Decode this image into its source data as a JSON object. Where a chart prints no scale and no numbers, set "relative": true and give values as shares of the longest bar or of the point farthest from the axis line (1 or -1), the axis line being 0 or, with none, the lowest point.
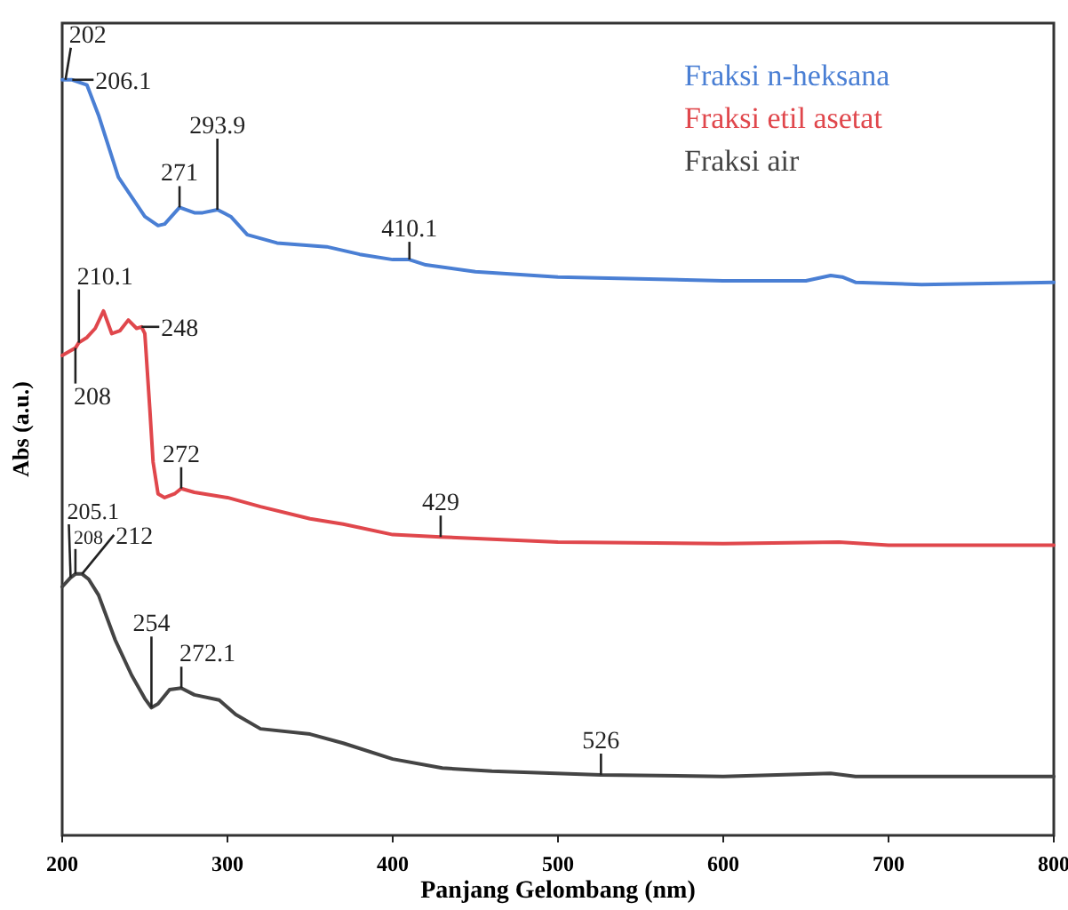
{
  "chart_data": {
    "type": "line",
    "relative": true,
    "xlabel": "Panjang Gelombang (nm)",
    "ylabel": "Abs (a.u.)",
    "xlim": [
      200,
      800
    ],
    "xticks": [
      200,
      300,
      400,
      500,
      600,
      700,
      800
    ],
    "legend": "top right",
    "grid": false,
    "line_style": "solid",
    "series": [
      {
        "name": "Fraksi n-heksana",
        "color": "#4a7fd4",
        "x": [
          200,
          206,
          215,
          222,
          234,
          250,
          258,
          262,
          271,
          280,
          285,
          294,
          302,
          312,
          330,
          360,
          380,
          400,
          410,
          420,
          450,
          500,
          600,
          650,
          665,
          672,
          680,
          720,
          800
        ],
        "values": [
          1.0,
          1.0,
          0.993,
          0.953,
          0.871,
          0.819,
          0.807,
          0.809,
          0.831,
          0.824,
          0.824,
          0.828,
          0.819,
          0.795,
          0.784,
          0.779,
          0.769,
          0.762,
          0.762,
          0.755,
          0.746,
          0.739,
          0.734,
          0.734,
          0.741,
          0.739,
          0.732,
          0.729,
          0.732
        ]
      },
      {
        "name": "Fraksi etil asetat",
        "color": "#e0474c",
        "x": [
          200,
          204,
          208,
          210,
          215,
          220,
          225,
          230,
          235,
          240,
          245,
          248,
          250,
          253,
          255,
          258,
          262,
          268,
          272,
          280,
          300,
          320,
          350,
          370,
          400,
          429,
          500,
          600,
          670,
          700,
          800
        ],
        "values": [
          0.635,
          0.64,
          0.645,
          0.652,
          0.659,
          0.671,
          0.694,
          0.664,
          0.668,
          0.682,
          0.671,
          0.673,
          0.664,
          0.565,
          0.494,
          0.452,
          0.447,
          0.452,
          0.459,
          0.454,
          0.447,
          0.435,
          0.419,
          0.412,
          0.398,
          0.395,
          0.388,
          0.386,
          0.388,
          0.384,
          0.384
        ]
      },
      {
        "name": "Fraksi air",
        "color": "#444444",
        "x": [
          200,
          205,
          208,
          212,
          216,
          222,
          232,
          242,
          250,
          254,
          258,
          265,
          272,
          280,
          295,
          305,
          320,
          350,
          370,
          400,
          430,
          460,
          526,
          600,
          665,
          680,
          800
        ],
        "values": [
          0.329,
          0.341,
          0.346,
          0.346,
          0.339,
          0.318,
          0.259,
          0.212,
          0.181,
          0.169,
          0.174,
          0.193,
          0.195,
          0.186,
          0.179,
          0.16,
          0.141,
          0.134,
          0.122,
          0.101,
          0.089,
          0.085,
          0.08,
          0.078,
          0.082,
          0.078,
          0.078
        ]
      }
    ],
    "annotations": [
      {
        "text": "202",
        "x": 202,
        "y": 1.0
      },
      {
        "text": "206.1",
        "x": 206.1,
        "y": 1.0
      },
      {
        "text": "271",
        "x": 271,
        "y": 0.831
      },
      {
        "text": "293.9",
        "x": 293.9,
        "y": 0.828
      },
      {
        "text": "410.1",
        "x": 410.1,
        "y": 0.762
      },
      {
        "text": "210.1",
        "x": 210.1,
        "y": 0.652
      },
      {
        "text": "208",
        "x": 208,
        "y": 0.645
      },
      {
        "text": "248",
        "x": 248,
        "y": 0.673
      },
      {
        "text": "272",
        "x": 272,
        "y": 0.459
      },
      {
        "text": "429",
        "x": 429,
        "y": 0.395
      },
      {
        "text": "205.1",
        "x": 205.1,
        "y": 0.341
      },
      {
        "text": "208",
        "x": 208,
        "y": 0.346
      },
      {
        "text": "212",
        "x": 212,
        "y": 0.346
      },
      {
        "text": "254",
        "x": 254,
        "y": 0.169
      },
      {
        "text": "272.1",
        "x": 272.1,
        "y": 0.195
      },
      {
        "text": "526",
        "x": 526,
        "y": 0.08
      }
    ]
  }
}
